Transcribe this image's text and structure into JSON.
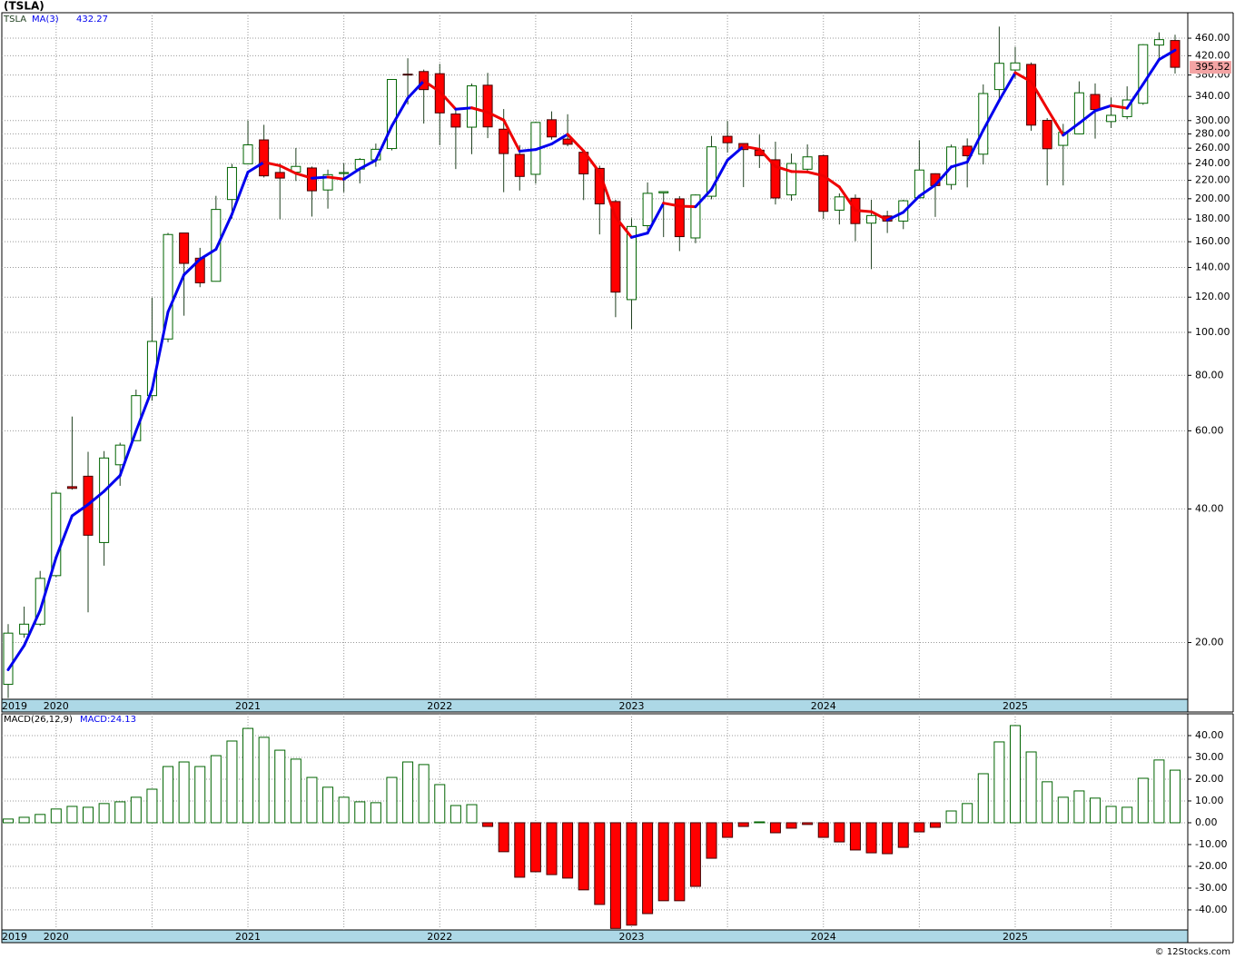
{
  "chart_data": [
    {
      "type": "candlestick",
      "title": "(TSLA)",
      "symbol": "TSLA",
      "categories": [
        "2019",
        null,
        null,
        "2020",
        null,
        null,
        null,
        null,
        null,
        null,
        null,
        null,
        null,
        null,
        null,
        "2021",
        null,
        null,
        null,
        null,
        null,
        null,
        null,
        null,
        null,
        null,
        null,
        "2022",
        null,
        null,
        null,
        null,
        null,
        null,
        null,
        null,
        null,
        null,
        null,
        "2023",
        null,
        null,
        null,
        null,
        null,
        null,
        null,
        null,
        null,
        null,
        null,
        "2024",
        null,
        null,
        null,
        null,
        null,
        null,
        null,
        null,
        null,
        null,
        null,
        "2025",
        null,
        null,
        null,
        null,
        null,
        null,
        null,
        null,
        null,
        null
      ],
      "open": [
        16.1,
        20.9,
        22.0,
        28.3,
        44.9,
        47.4,
        33.6,
        50.3,
        57.0,
        72.0,
        96.6,
        167.4,
        146.9,
        130.3,
        199.2,
        239.8,
        271.4,
        229.2,
        229.5,
        234.6,
        209.3,
        227.9,
        233.3,
        244.7,
        259.5,
        381.7,
        386.9,
        382.6,
        310.4,
        289.9,
        360.4,
        286.9,
        251.7,
        227.0,
        301.3,
        272.6,
        254.5,
        234.1,
        197.1,
        118.5,
        173.9,
        206.2,
        199.9,
        163.2,
        202.6,
        276.5,
        266.3,
        257.3,
        244.8,
        204.0,
        233.1,
        250.1,
        188.5,
        200.5,
        176.2,
        182.9,
        178.1,
        201.0,
        227.7,
        215.3,
        262.7,
        252.0,
        352.4,
        390.1,
        401.5,
        300.3,
        263.8,
        280.0,
        343.5,
        298.5,
        306.2,
        328.2,
        443.8,
        454.5
      ],
      "high": [
        22.0,
        24.1,
        29.0,
        43.9,
        64.6,
        53.8,
        54.0,
        56.4,
        74.3,
        119.7,
        167.5,
        167.5,
        155.0,
        203.0,
        239.6,
        300.1,
        293.5,
        240.4,
        260.3,
        236.4,
        232.6,
        240.4,
        247.0,
        266.3,
        371.7,
        414.5,
        390.9,
        402.7,
        315.9,
        363.6,
        384.3,
        318.5,
        264.2,
        298.3,
        314.7,
        310.0,
        257.5,
        237.4,
        198.9,
        180.7,
        217.7,
        207.8,
        202.7,
        204.5,
        277.0,
        299.3,
        266.5,
        279.0,
        268.9,
        252.8,
        265.1,
        251.3,
        205.6,
        204.5,
        198.9,
        187.9,
        198.9,
        271.0,
        228.2,
        264.9,
        273.5,
        361.9,
        488.5,
        439.7,
        405.6,
        303.9,
        294.9,
        367.7,
        363.8,
        338.0,
        358.3,
        446.0,
        474.1,
        468.4
      ],
      "low": [
        15.0,
        20.5,
        21.8,
        28.1,
        44.2,
        23.4,
        29.8,
        45.1,
        57.0,
        70.1,
        95.0,
        109.0,
        126.4,
        130.1,
        180.4,
        239.1,
        223.3,
        179.8,
        219.3,
        182.3,
        190.0,
        206.8,
        216.6,
        236.1,
        257.0,
        326.2,
        295.4,
        264.0,
        233.3,
        252.0,
        273.9,
        206.9,
        208.7,
        216.2,
        271.8,
        262.5,
        198.6,
        166.2,
        108.2,
        101.8,
        169.9,
        163.9,
        152.4,
        158.8,
        199.4,
        254.1,
        212.4,
        234.6,
        194.1,
        197.9,
        228.2,
        180.1,
        175.0,
        160.5,
        138.8,
        167.4,
        170.8,
        200.8,
        182.0,
        209.7,
        212.1,
        238.9,
        330.1,
        373.0,
        284.5,
        214.3,
        214.3,
        279.5,
        273.2,
        288.8,
        302.1,
        325.6,
        413.0,
        382.8
      ],
      "close": [
        21.0,
        22.0,
        27.9,
        43.4,
        44.5,
        34.9,
        52.1,
        55.7,
        72.0,
        95.4,
        166.1,
        143.0,
        129.3,
        189.2,
        235.2,
        264.5,
        225.2,
        222.6,
        236.5,
        208.4,
        226.6,
        229.1,
        245.2,
        258.5,
        371.3,
        381.6,
        352.3,
        312.2,
        290.1,
        359.2,
        290.3,
        252.8,
        224.5,
        297.1,
        275.6,
        265.3,
        227.5,
        194.7,
        123.2,
        173.2,
        205.7,
        207.5,
        164.3,
        203.9,
        261.8,
        267.4,
        258.1,
        250.2,
        200.8,
        240.1,
        248.5,
        187.3,
        201.9,
        175.8,
        183.3,
        178.1,
        197.9,
        232.1,
        214.1,
        261.6,
        249.9,
        345.2,
        403.8,
        404.6,
        293.0,
        259.2,
        282.2,
        346.5,
        317.7,
        308.3,
        333.9,
        444.7,
        456.6,
        395.52
      ],
      "up_color": "#ffffff",
      "up_edge": "#006400",
      "down_color": "#ff0000",
      "down_edge": "#400000",
      "wick_color": "#204020",
      "last_price_color": "#f4a4a4",
      "ma": {
        "name": "MA(3)",
        "values": [
          17.37,
          19.69,
          23.63,
          31.1,
          38.6,
          40.93,
          43.83,
          47.57,
          59.93,
          74.37,
          111.17,
          134.83,
          146.13,
          153.83,
          184.57,
          229.63,
          241.63,
          237.43,
          228.1,
          222.5,
          223.83,
          221.37,
          233.63,
          244.27,
          291.67,
          337.13,
          368.4,
          348.7,
          318.2,
          320.5,
          313.2,
          300.77,
          255.87,
          258.13,
          265.73,
          279.33,
          256.13,
          229.17,
          181.8,
          163.7,
          167.37,
          195.47,
          192.5,
          191.9,
          210.0,
          244.37,
          262.43,
          258.57,
          236.37,
          230.37,
          229.8,
          225.3,
          212.57,
          188.33,
          187.0,
          179.07,
          186.43,
          202.7,
          214.7,
          235.93,
          241.87,
          285.57,
          332.97,
          384.53,
          367.13,
          318.93,
          278.13,
          295.97,
          315.47,
          324.17,
          319.97,
          362.3,
          411.73,
          432.27
        ],
        "up_color": "#0000ee",
        "down_color": "#ee0000"
      },
      "log_scale": true,
      "ylim": [
        14.9,
        525
      ],
      "yticks": [
        {
          "value": 20,
          "label": "20.00"
        },
        {
          "value": 40,
          "label": "40.00"
        },
        {
          "value": 60,
          "label": "60.00"
        },
        {
          "value": 80,
          "label": "80.00"
        },
        {
          "value": 100,
          "label": "100.00"
        },
        {
          "value": 120,
          "label": "120.00"
        },
        {
          "value": 140,
          "label": "140.00"
        },
        {
          "value": 160,
          "label": "160.00"
        },
        {
          "value": 180,
          "label": "180.00"
        },
        {
          "value": 200,
          "label": "200.00"
        },
        {
          "value": 220,
          "label": "220.00"
        },
        {
          "value": 240,
          "label": "240.00"
        },
        {
          "value": 260,
          "label": "260.00"
        },
        {
          "value": 280,
          "label": "280.00"
        },
        {
          "value": 300,
          "label": "300.00"
        },
        {
          "value": 340,
          "label": "340.00"
        },
        {
          "value": 380,
          "label": "380.00"
        },
        {
          "value": 420,
          "label": "420.00"
        },
        {
          "value": 460,
          "label": "460.00"
        }
      ],
      "grid": true
    },
    {
      "type": "bar",
      "title": "MACD(26,12,9)",
      "legend_label": "MACD:24.13",
      "values": [
        1.7,
        2.5,
        3.8,
        6.3,
        7.5,
        7.1,
        8.8,
        9.6,
        11.7,
        15.4,
        25.8,
        27.9,
        25.8,
        30.8,
        37.5,
        43.3,
        39.2,
        33.3,
        29.2,
        20.8,
        16.3,
        11.7,
        9.6,
        9.2,
        20.8,
        27.9,
        26.7,
        17.5,
        7.9,
        8.3,
        -1.7,
        -13.3,
        -25,
        -22.5,
        -23.8,
        -25.4,
        -30.8,
        -37.5,
        -48.5,
        -47,
        -41.7,
        -35.8,
        -35.8,
        -29.2,
        -16.3,
        -6.7,
        -1.7,
        0.4,
        -4.6,
        -2.5,
        -0.8,
        -6.7,
        -8.8,
        -12.5,
        -13.8,
        -14.2,
        -11.3,
        -4.2,
        -2.1,
        5.4,
        8.8,
        22.5,
        37.1,
        44.6,
        32.5,
        18.8,
        11.7,
        14.6,
        11.3,
        7.5,
        7.1,
        20.4,
        28.8,
        24.13
      ],
      "positive_color": "#ffffff",
      "positive_edge": "#006400",
      "negative_color": "#ff0000",
      "negative_edge": "#400000",
      "ylim": [
        -49.2,
        50
      ],
      "yticks": [
        {
          "value": 40,
          "label": "40.00"
        },
        {
          "value": 30,
          "label": "30.00"
        },
        {
          "value": 20,
          "label": "20.00"
        },
        {
          "value": 10,
          "label": "10.00"
        },
        {
          "value": 0,
          "label": "0.00"
        },
        {
          "value": -10,
          "label": "-10.00"
        },
        {
          "value": -20,
          "label": "-20.00"
        },
        {
          "value": -30,
          "label": "-30.00"
        },
        {
          "value": -40,
          "label": "-40.00"
        }
      ],
      "grid": true
    }
  ],
  "footer": "© 12Stocks.com"
}
